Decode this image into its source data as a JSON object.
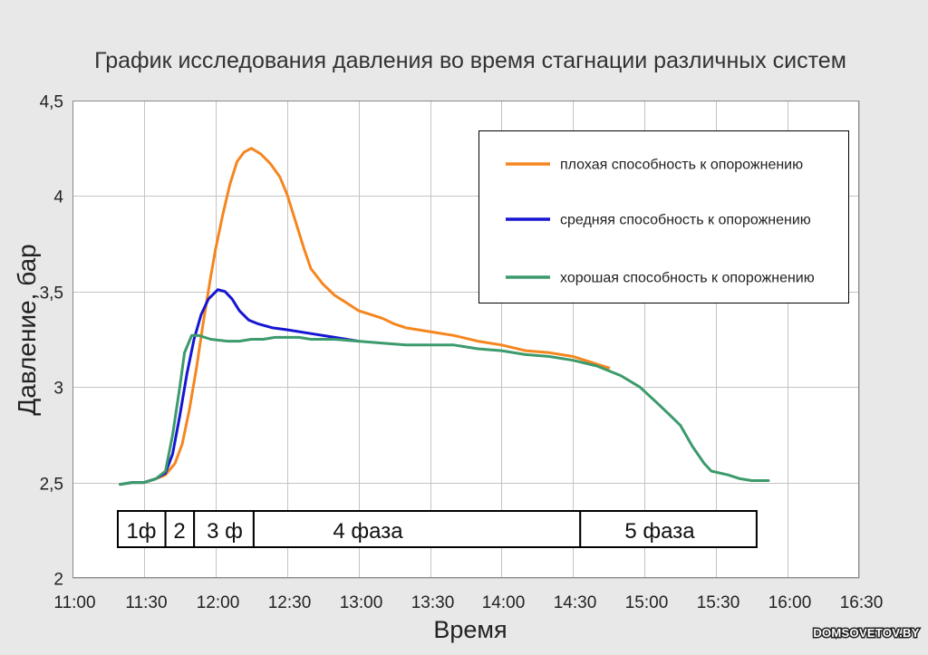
{
  "chart_data": {
    "type": "line",
    "title": "График исследования давления во время стагнации различных систем",
    "xlabel": "Время",
    "ylabel": "Давление, бар",
    "xlim": [
      "11:00",
      "16:30"
    ],
    "ylim": [
      2,
      4.5
    ],
    "grid": true,
    "legend_position": "top-right",
    "x_ticks": [
      "11:00",
      "11:30",
      "12:00",
      "12:30",
      "13:00",
      "13:30",
      "14:00",
      "14:30",
      "15:00",
      "15:30",
      "16:00",
      "16:30"
    ],
    "y_ticks": [
      {
        "value": 2,
        "label": "2"
      },
      {
        "value": 2.5,
        "label": "2,5"
      },
      {
        "value": 3,
        "label": "3"
      },
      {
        "value": 3.5,
        "label": "3,5"
      },
      {
        "value": 4,
        "label": "4"
      },
      {
        "value": 4.5,
        "label": "4,5"
      }
    ],
    "series": [
      {
        "name": "плохая способность к опорожнению",
        "color": "#f5861f",
        "x": [
          "11:20",
          "11:25",
          "11:30",
          "11:35",
          "11:39",
          "11:43",
          "11:46",
          "11:49",
          "11:52",
          "11:55",
          "11:58",
          "12:00",
          "12:03",
          "12:06",
          "12:09",
          "12:12",
          "12:15",
          "12:19",
          "12:23",
          "12:27",
          "12:30",
          "12:33",
          "12:37",
          "12:40",
          "12:45",
          "12:50",
          "12:55",
          "13:00",
          "13:10",
          "13:15",
          "13:20",
          "13:30",
          "13:40",
          "13:50",
          "14:00",
          "14:10",
          "14:20",
          "14:30",
          "14:40",
          "14:45"
        ],
        "y": [
          2.49,
          2.5,
          2.5,
          2.52,
          2.54,
          2.6,
          2.7,
          2.88,
          3.1,
          3.35,
          3.58,
          3.72,
          3.9,
          4.06,
          4.18,
          4.23,
          4.25,
          4.22,
          4.17,
          4.1,
          4.01,
          3.89,
          3.73,
          3.62,
          3.54,
          3.48,
          3.44,
          3.4,
          3.36,
          3.33,
          3.31,
          3.29,
          3.27,
          3.24,
          3.22,
          3.19,
          3.18,
          3.16,
          3.12,
          3.1
        ]
      },
      {
        "name": "средняя способность к опорожнению",
        "color": "#1616d2",
        "x": [
          "11:20",
          "11:25",
          "11:30",
          "11:35",
          "11:39",
          "11:42",
          "11:45",
          "11:48",
          "11:51",
          "11:54",
          "11:57",
          "12:01",
          "12:04",
          "12:07",
          "12:10",
          "12:14",
          "12:18",
          "12:24",
          "12:30",
          "12:40",
          "12:50",
          "13:00"
        ],
        "y": [
          2.49,
          2.5,
          2.5,
          2.52,
          2.55,
          2.65,
          2.85,
          3.07,
          3.25,
          3.38,
          3.46,
          3.51,
          3.5,
          3.46,
          3.4,
          3.35,
          3.33,
          3.31,
          3.3,
          3.28,
          3.26,
          3.24
        ]
      },
      {
        "name": "хорошая способность к опорожнению",
        "color": "#3c9a6c",
        "x": [
          "11:20",
          "11:25",
          "11:30",
          "11:35",
          "11:39",
          "11:42",
          "11:45",
          "11:47",
          "11:50",
          "11:53",
          "11:58",
          "12:05",
          "12:10",
          "12:15",
          "12:20",
          "12:25",
          "12:35",
          "12:40",
          "12:50",
          "13:00",
          "13:10",
          "13:20",
          "13:30",
          "13:40",
          "13:45",
          "13:50",
          "14:00",
          "14:10",
          "14:20",
          "14:30",
          "14:40",
          "14:50",
          "14:58",
          "15:05",
          "15:10",
          "15:15",
          "15:20",
          "15:25",
          "15:28",
          "15:35",
          "15:40",
          "15:45",
          "15:52"
        ],
        "y": [
          2.49,
          2.5,
          2.5,
          2.52,
          2.56,
          2.75,
          3.0,
          3.18,
          3.27,
          3.27,
          3.25,
          3.24,
          3.24,
          3.25,
          3.25,
          3.26,
          3.26,
          3.25,
          3.25,
          3.24,
          3.23,
          3.22,
          3.22,
          3.22,
          3.21,
          3.2,
          3.19,
          3.17,
          3.16,
          3.14,
          3.11,
          3.06,
          3.0,
          2.92,
          2.86,
          2.8,
          2.69,
          2.6,
          2.56,
          2.54,
          2.52,
          2.51,
          2.51
        ]
      }
    ],
    "phases": [
      {
        "label": "1ф",
        "start": "11:19",
        "end": "11:39"
      },
      {
        "label": "2",
        "start": "11:39",
        "end": "11:51"
      },
      {
        "label": "3 ф",
        "start": "11:51",
        "end": "12:16"
      },
      {
        "label": "4 фаза",
        "start": "12:16",
        "end": "14:33"
      },
      {
        "label": "5 фаза",
        "start": "14:33",
        "end": "15:47"
      }
    ]
  },
  "watermark": "DOMSOVETOV.BY"
}
